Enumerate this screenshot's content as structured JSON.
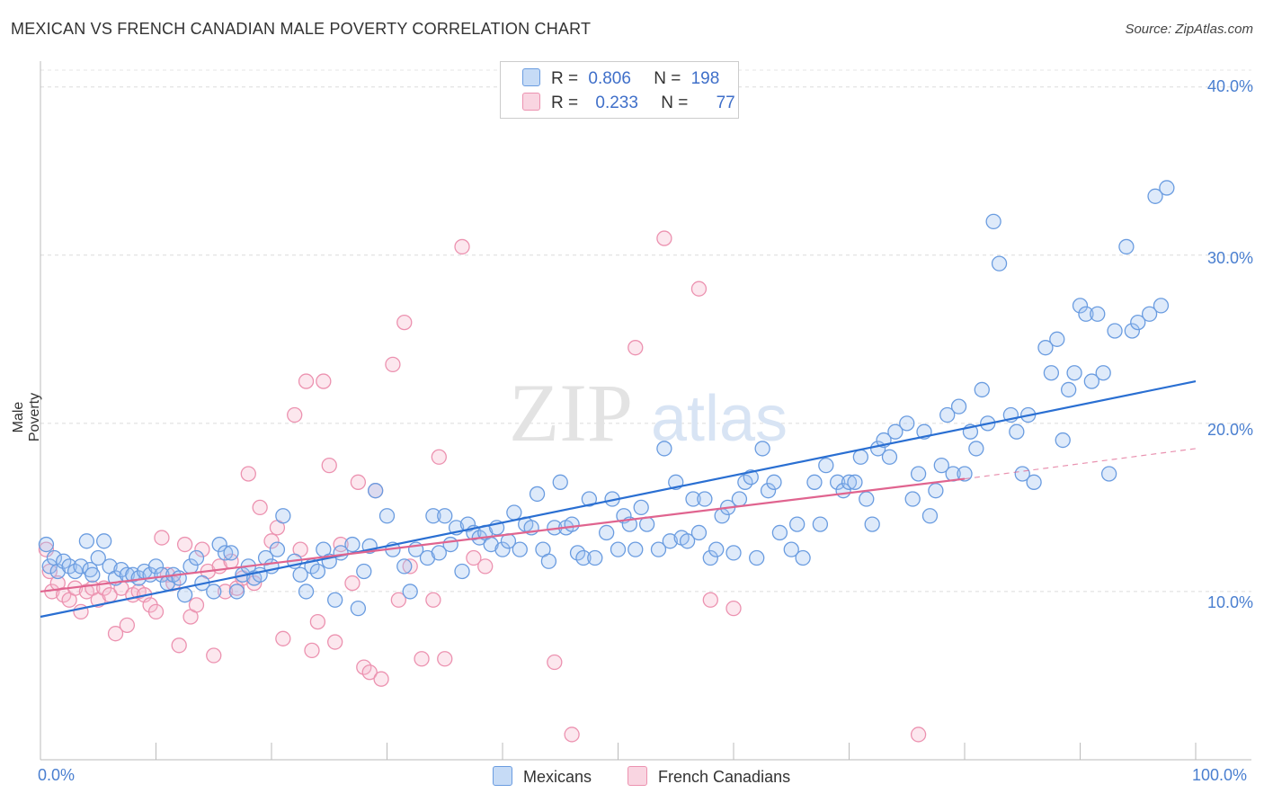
{
  "title": "MEXICAN VS FRENCH CANADIAN MALE POVERTY CORRELATION CHART",
  "source": "Source: ZipAtlas.com",
  "watermark": {
    "zip": "ZIP",
    "atlas": "atlas"
  },
  "legend": {
    "rows": [
      {
        "r_label": "R =",
        "r_value": "0.806",
        "n_label": "N =",
        "n_value": "198"
      },
      {
        "r_label": "R =",
        "r_value": "0.233",
        "n_label": "N =",
        "n_value": "77"
      }
    ]
  },
  "bottom_legend": {
    "series1": "Mexicans",
    "series2": "French Canadians"
  },
  "colors": {
    "blue": "#6a9ce0",
    "blue_fill": "rgba(160,195,240,0.35)",
    "blue_line": "#2a6fd2",
    "pink": "#ec92b0",
    "pink_fill": "rgba(245,185,205,0.35)",
    "pink_line": "#e0648f",
    "tick_text": "#4a7fd0"
  },
  "chart_data": {
    "type": "scatter",
    "title": "MEXICAN VS FRENCH CANADIAN MALE POVERTY CORRELATION CHART",
    "xlabel": "",
    "ylabel": "Male Poverty",
    "xlim": [
      0,
      100
    ],
    "ylim": [
      0,
      41
    ],
    "x_tick_labels": [
      "0.0%",
      "100.0%"
    ],
    "y_ticks": [
      10,
      20,
      30,
      40
    ],
    "y_tick_labels": [
      "10.0%",
      "20.0%",
      "30.0%",
      "40.0%"
    ],
    "grid": true,
    "series": [
      {
        "name": "Mexicans",
        "r": 0.806,
        "n": 198,
        "trend": {
          "x0": 0,
          "y0": 8.5,
          "x1": 100,
          "y1": 22.5
        },
        "points": [
          [
            0.5,
            12.8
          ],
          [
            0.8,
            11.5
          ],
          [
            1.2,
            12.0
          ],
          [
            1.5,
            11.2
          ],
          [
            2.0,
            11.8
          ],
          [
            2.5,
            11.5
          ],
          [
            3.0,
            11.2
          ],
          [
            3.5,
            11.5
          ],
          [
            4.0,
            13.0
          ],
          [
            4.3,
            11.3
          ],
          [
            4.5,
            11.0
          ],
          [
            5.0,
            12.0
          ],
          [
            5.5,
            13.0
          ],
          [
            6.0,
            11.5
          ],
          [
            6.5,
            10.8
          ],
          [
            7.0,
            11.3
          ],
          [
            7.5,
            11.0
          ],
          [
            8.0,
            11.0
          ],
          [
            8.5,
            10.8
          ],
          [
            9.0,
            11.2
          ],
          [
            9.5,
            11.0
          ],
          [
            10.0,
            11.5
          ],
          [
            10.5,
            11.0
          ],
          [
            11.0,
            10.5
          ],
          [
            11.5,
            11.0
          ],
          [
            12.0,
            10.8
          ],
          [
            12.5,
            9.8
          ],
          [
            13.0,
            11.5
          ],
          [
            13.5,
            12.0
          ],
          [
            14.0,
            10.5
          ],
          [
            15.0,
            10.0
          ],
          [
            15.5,
            12.8
          ],
          [
            16.0,
            12.3
          ],
          [
            16.5,
            12.3
          ],
          [
            17.0,
            10.0
          ],
          [
            17.5,
            11.0
          ],
          [
            18.0,
            11.5
          ],
          [
            18.5,
            10.8
          ],
          [
            19.0,
            11.0
          ],
          [
            19.5,
            12.0
          ],
          [
            20.0,
            11.5
          ],
          [
            20.5,
            12.5
          ],
          [
            21.0,
            14.5
          ],
          [
            22.0,
            11.8
          ],
          [
            22.5,
            11.0
          ],
          [
            23.0,
            10.0
          ],
          [
            23.5,
            11.5
          ],
          [
            24.0,
            11.2
          ],
          [
            24.5,
            12.5
          ],
          [
            25.0,
            11.8
          ],
          [
            25.5,
            9.5
          ],
          [
            26.0,
            12.3
          ],
          [
            27.0,
            12.8
          ],
          [
            27.5,
            9.0
          ],
          [
            28.0,
            11.2
          ],
          [
            28.5,
            12.7
          ],
          [
            29.0,
            16.0
          ],
          [
            30.0,
            14.5
          ],
          [
            30.5,
            12.5
          ],
          [
            31.5,
            11.5
          ],
          [
            32.0,
            10.0
          ],
          [
            32.5,
            12.5
          ],
          [
            33.5,
            12.0
          ],
          [
            34.0,
            14.5
          ],
          [
            34.5,
            12.3
          ],
          [
            35.0,
            14.5
          ],
          [
            35.5,
            12.8
          ],
          [
            36.0,
            13.8
          ],
          [
            36.5,
            11.2
          ],
          [
            37.0,
            14.0
          ],
          [
            37.5,
            13.5
          ],
          [
            38.0,
            13.2
          ],
          [
            38.5,
            13.5
          ],
          [
            39.0,
            12.8
          ],
          [
            39.5,
            13.8
          ],
          [
            40.0,
            12.5
          ],
          [
            40.5,
            13.0
          ],
          [
            41.0,
            14.7
          ],
          [
            41.5,
            12.5
          ],
          [
            42.0,
            14.0
          ],
          [
            42.5,
            13.8
          ],
          [
            43.0,
            15.8
          ],
          [
            43.5,
            12.5
          ],
          [
            44.0,
            11.8
          ],
          [
            44.5,
            13.8
          ],
          [
            45.0,
            16.5
          ],
          [
            45.5,
            13.8
          ],
          [
            46.0,
            14.0
          ],
          [
            46.5,
            12.3
          ],
          [
            47.0,
            12.0
          ],
          [
            47.5,
            15.5
          ],
          [
            48.0,
            12.0
          ],
          [
            49.0,
            13.5
          ],
          [
            49.5,
            15.5
          ],
          [
            50.0,
            12.5
          ],
          [
            50.5,
            14.5
          ],
          [
            51.0,
            14.0
          ],
          [
            51.5,
            12.5
          ],
          [
            52.0,
            15.0
          ],
          [
            52.5,
            14.0
          ],
          [
            53.5,
            12.5
          ],
          [
            54.0,
            18.5
          ],
          [
            54.5,
            13.0
          ],
          [
            55.0,
            16.5
          ],
          [
            55.5,
            13.2
          ],
          [
            56.0,
            13.0
          ],
          [
            56.5,
            15.5
          ],
          [
            57.0,
            13.5
          ],
          [
            57.5,
            15.5
          ],
          [
            58.0,
            12.0
          ],
          [
            58.5,
            12.5
          ],
          [
            59.0,
            14.5
          ],
          [
            59.5,
            15.0
          ],
          [
            60.0,
            12.3
          ],
          [
            60.5,
            15.5
          ],
          [
            61.0,
            16.5
          ],
          [
            61.5,
            16.8
          ],
          [
            62.0,
            12.0
          ],
          [
            62.5,
            18.5
          ],
          [
            63.0,
            16.0
          ],
          [
            63.5,
            16.5
          ],
          [
            64.0,
            13.5
          ],
          [
            65.0,
            12.5
          ],
          [
            65.5,
            14.0
          ],
          [
            66.0,
            12.0
          ],
          [
            67.0,
            16.5
          ],
          [
            67.5,
            14.0
          ],
          [
            68.0,
            17.5
          ],
          [
            69.0,
            16.5
          ],
          [
            69.5,
            16.0
          ],
          [
            70.0,
            16.5
          ],
          [
            70.5,
            16.5
          ],
          [
            71.0,
            18.0
          ],
          [
            71.5,
            15.5
          ],
          [
            72.0,
            14.0
          ],
          [
            72.5,
            18.5
          ],
          [
            73.0,
            19.0
          ],
          [
            73.5,
            18.0
          ],
          [
            74.0,
            19.5
          ],
          [
            75.0,
            20.0
          ],
          [
            75.5,
            15.5
          ],
          [
            76.0,
            17.0
          ],
          [
            76.5,
            19.5
          ],
          [
            77.0,
            14.5
          ],
          [
            77.5,
            16.0
          ],
          [
            78.0,
            17.5
          ],
          [
            78.5,
            20.5
          ],
          [
            79.0,
            17.0
          ],
          [
            79.5,
            21.0
          ],
          [
            80.0,
            17.0
          ],
          [
            80.5,
            19.5
          ],
          [
            81.0,
            18.5
          ],
          [
            81.5,
            22.0
          ],
          [
            82.0,
            20.0
          ],
          [
            82.5,
            32.0
          ],
          [
            83.0,
            29.5
          ],
          [
            84.0,
            20.5
          ],
          [
            84.5,
            19.5
          ],
          [
            85.0,
            17.0
          ],
          [
            85.5,
            20.5
          ],
          [
            86.0,
            16.5
          ],
          [
            87.0,
            24.5
          ],
          [
            87.5,
            23.0
          ],
          [
            88.0,
            25.0
          ],
          [
            88.5,
            19.0
          ],
          [
            89.0,
            22.0
          ],
          [
            89.5,
            23.0
          ],
          [
            90.0,
            27.0
          ],
          [
            90.5,
            26.5
          ],
          [
            91.0,
            22.5
          ],
          [
            91.5,
            26.5
          ],
          [
            92.0,
            23.0
          ],
          [
            92.5,
            17.0
          ],
          [
            93.0,
            25.5
          ],
          [
            94.0,
            30.5
          ],
          [
            94.5,
            25.5
          ],
          [
            95.0,
            26.0
          ],
          [
            96.0,
            26.5
          ],
          [
            96.5,
            33.5
          ],
          [
            97.0,
            27.0
          ],
          [
            97.5,
            34.0
          ]
        ]
      },
      {
        "name": "French Canadians",
        "r": 0.233,
        "n": 77,
        "trend": {
          "x0": 0,
          "y0": 10.0,
          "x1": 80,
          "y1": 16.7
        },
        "trend_dashed_to": {
          "x": 100,
          "y": 18.5
        },
        "points": [
          [
            0.5,
            12.5
          ],
          [
            0.8,
            11.2
          ],
          [
            1.0,
            10.0
          ],
          [
            1.5,
            10.5
          ],
          [
            2.0,
            9.8
          ],
          [
            2.5,
            9.5
          ],
          [
            3.0,
            10.2
          ],
          [
            3.5,
            8.8
          ],
          [
            4.0,
            10.0
          ],
          [
            4.5,
            10.2
          ],
          [
            5.0,
            9.5
          ],
          [
            5.5,
            10.2
          ],
          [
            6.0,
            9.8
          ],
          [
            6.5,
            7.5
          ],
          [
            7.0,
            10.2
          ],
          [
            7.5,
            8.0
          ],
          [
            8.0,
            9.8
          ],
          [
            8.5,
            10.0
          ],
          [
            9.0,
            9.8
          ],
          [
            9.5,
            9.2
          ],
          [
            10.0,
            8.8
          ],
          [
            10.5,
            13.2
          ],
          [
            11.0,
            11.0
          ],
          [
            11.5,
            10.5
          ],
          [
            12.0,
            6.8
          ],
          [
            12.5,
            12.8
          ],
          [
            13.0,
            8.5
          ],
          [
            13.5,
            9.2
          ],
          [
            14.0,
            12.5
          ],
          [
            14.5,
            11.2
          ],
          [
            15.0,
            6.2
          ],
          [
            15.5,
            11.5
          ],
          [
            16.0,
            10.0
          ],
          [
            16.5,
            11.8
          ],
          [
            17.0,
            10.2
          ],
          [
            17.5,
            10.8
          ],
          [
            18.0,
            17.0
          ],
          [
            18.5,
            10.5
          ],
          [
            19.0,
            15.0
          ],
          [
            20.0,
            13.0
          ],
          [
            20.5,
            13.8
          ],
          [
            21.0,
            7.2
          ],
          [
            22.0,
            20.5
          ],
          [
            22.5,
            12.5
          ],
          [
            23.0,
            22.5
          ],
          [
            23.5,
            6.5
          ],
          [
            24.0,
            8.2
          ],
          [
            24.5,
            22.5
          ],
          [
            25.0,
            17.5
          ],
          [
            25.5,
            7.0
          ],
          [
            26.0,
            12.8
          ],
          [
            27.0,
            10.5
          ],
          [
            27.5,
            16.5
          ],
          [
            28.0,
            5.5
          ],
          [
            28.5,
            5.2
          ],
          [
            29.0,
            16.0
          ],
          [
            29.5,
            4.8
          ],
          [
            30.5,
            23.5
          ],
          [
            31.0,
            9.5
          ],
          [
            31.5,
            26.0
          ],
          [
            32.0,
            11.5
          ],
          [
            33.0,
            6.0
          ],
          [
            34.0,
            9.5
          ],
          [
            34.5,
            18.0
          ],
          [
            35.0,
            6.0
          ],
          [
            36.5,
            30.5
          ],
          [
            37.5,
            12.0
          ],
          [
            38.5,
            11.5
          ],
          [
            44.5,
            5.8
          ],
          [
            46.0,
            1.5
          ],
          [
            51.5,
            24.5
          ],
          [
            54.0,
            31.0
          ],
          [
            57.0,
            28.0
          ],
          [
            58.0,
            9.5
          ],
          [
            60.0,
            9.0
          ],
          [
            76.0,
            1.5
          ]
        ]
      }
    ]
  }
}
